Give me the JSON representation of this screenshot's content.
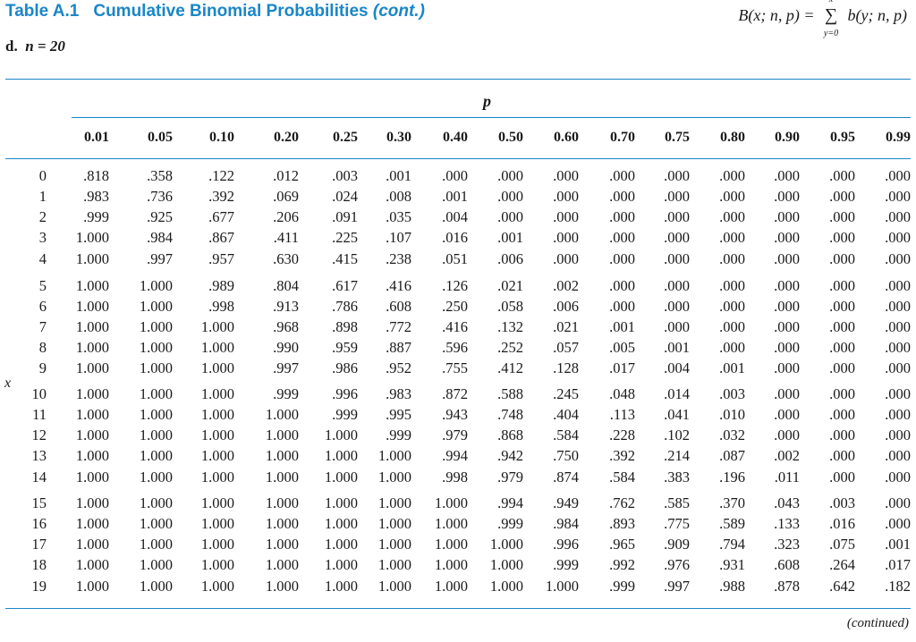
{
  "header": {
    "table_label": "Table A.1",
    "title": "Cumulative Binomial Probabilities",
    "title_suffix": "(cont.)",
    "formula_lhs": "B(x; n, p) =",
    "formula_sum_upper": "x",
    "formula_sum_lower": "y=0",
    "formula_rhs": "b(y; n, p)",
    "subtitle_letter": "d.",
    "subtitle_n": "n = 20"
  },
  "table": {
    "p_label": "p",
    "x_label": "x",
    "columns": [
      "0.01",
      "0.05",
      "0.10",
      "0.20",
      "0.25",
      "0.30",
      "0.40",
      "0.50",
      "0.60",
      "0.70",
      "0.75",
      "0.80",
      "0.90",
      "0.95",
      "0.99"
    ],
    "rows": [
      {
        "x": "0",
        "v": [
          ".818",
          ".358",
          ".122",
          ".012",
          ".003",
          ".001",
          ".000",
          ".000",
          ".000",
          ".000",
          ".000",
          ".000",
          ".000",
          ".000",
          ".000"
        ]
      },
      {
        "x": "1",
        "v": [
          ".983",
          ".736",
          ".392",
          ".069",
          ".024",
          ".008",
          ".001",
          ".000",
          ".000",
          ".000",
          ".000",
          ".000",
          ".000",
          ".000",
          ".000"
        ]
      },
      {
        "x": "2",
        "v": [
          ".999",
          ".925",
          ".677",
          ".206",
          ".091",
          ".035",
          ".004",
          ".000",
          ".000",
          ".000",
          ".000",
          ".000",
          ".000",
          ".000",
          ".000"
        ]
      },
      {
        "x": "3",
        "v": [
          "1.000",
          ".984",
          ".867",
          ".411",
          ".225",
          ".107",
          ".016",
          ".001",
          ".000",
          ".000",
          ".000",
          ".000",
          ".000",
          ".000",
          ".000"
        ]
      },
      {
        "x": "4",
        "v": [
          "1.000",
          ".997",
          ".957",
          ".630",
          ".415",
          ".238",
          ".051",
          ".006",
          ".000",
          ".000",
          ".000",
          ".000",
          ".000",
          ".000",
          ".000"
        ]
      },
      {
        "x": "5",
        "v": [
          "1.000",
          "1.000",
          ".989",
          ".804",
          ".617",
          ".416",
          ".126",
          ".021",
          ".002",
          ".000",
          ".000",
          ".000",
          ".000",
          ".000",
          ".000"
        ]
      },
      {
        "x": "6",
        "v": [
          "1.000",
          "1.000",
          ".998",
          ".913",
          ".786",
          ".608",
          ".250",
          ".058",
          ".006",
          ".000",
          ".000",
          ".000",
          ".000",
          ".000",
          ".000"
        ]
      },
      {
        "x": "7",
        "v": [
          "1.000",
          "1.000",
          "1.000",
          ".968",
          ".898",
          ".772",
          ".416",
          ".132",
          ".021",
          ".001",
          ".000",
          ".000",
          ".000",
          ".000",
          ".000"
        ]
      },
      {
        "x": "8",
        "v": [
          "1.000",
          "1.000",
          "1.000",
          ".990",
          ".959",
          ".887",
          ".596",
          ".252",
          ".057",
          ".005",
          ".001",
          ".000",
          ".000",
          ".000",
          ".000"
        ]
      },
      {
        "x": "9",
        "v": [
          "1.000",
          "1.000",
          "1.000",
          ".997",
          ".986",
          ".952",
          ".755",
          ".412",
          ".128",
          ".017",
          ".004",
          ".001",
          ".000",
          ".000",
          ".000"
        ]
      },
      {
        "x": "10",
        "v": [
          "1.000",
          "1.000",
          "1.000",
          ".999",
          ".996",
          ".983",
          ".872",
          ".588",
          ".245",
          ".048",
          ".014",
          ".003",
          ".000",
          ".000",
          ".000"
        ]
      },
      {
        "x": "11",
        "v": [
          "1.000",
          "1.000",
          "1.000",
          "1.000",
          ".999",
          ".995",
          ".943",
          ".748",
          ".404",
          ".113",
          ".041",
          ".010",
          ".000",
          ".000",
          ".000"
        ]
      },
      {
        "x": "12",
        "v": [
          "1.000",
          "1.000",
          "1.000",
          "1.000",
          "1.000",
          ".999",
          ".979",
          ".868",
          ".584",
          ".228",
          ".102",
          ".032",
          ".000",
          ".000",
          ".000"
        ]
      },
      {
        "x": "13",
        "v": [
          "1.000",
          "1.000",
          "1.000",
          "1.000",
          "1.000",
          "1.000",
          ".994",
          ".942",
          ".750",
          ".392",
          ".214",
          ".087",
          ".002",
          ".000",
          ".000"
        ]
      },
      {
        "x": "14",
        "v": [
          "1.000",
          "1.000",
          "1.000",
          "1.000",
          "1.000",
          "1.000",
          ".998",
          ".979",
          ".874",
          ".584",
          ".383",
          ".196",
          ".011",
          ".000",
          ".000"
        ]
      },
      {
        "x": "15",
        "v": [
          "1.000",
          "1.000",
          "1.000",
          "1.000",
          "1.000",
          "1.000",
          "1.000",
          ".994",
          ".949",
          ".762",
          ".585",
          ".370",
          ".043",
          ".003",
          ".000"
        ]
      },
      {
        "x": "16",
        "v": [
          "1.000",
          "1.000",
          "1.000",
          "1.000",
          "1.000",
          "1.000",
          "1.000",
          ".999",
          ".984",
          ".893",
          ".775",
          ".589",
          ".133",
          ".016",
          ".000"
        ]
      },
      {
        "x": "17",
        "v": [
          "1.000",
          "1.000",
          "1.000",
          "1.000",
          "1.000",
          "1.000",
          "1.000",
          "1.000",
          ".996",
          ".965",
          ".909",
          ".794",
          ".323",
          ".075",
          ".001"
        ]
      },
      {
        "x": "18",
        "v": [
          "1.000",
          "1.000",
          "1.000",
          "1.000",
          "1.000",
          "1.000",
          "1.000",
          "1.000",
          ".999",
          ".992",
          ".976",
          ".931",
          ".608",
          ".264",
          ".017"
        ]
      },
      {
        "x": "19",
        "v": [
          "1.000",
          "1.000",
          "1.000",
          "1.000",
          "1.000",
          "1.000",
          "1.000",
          "1.000",
          "1.000",
          ".999",
          ".997",
          ".988",
          ".878",
          ".642",
          ".182"
        ]
      }
    ]
  },
  "footer": {
    "continued": "(continued)"
  },
  "colors": {
    "accent": "#1a86c8",
    "text": "#1a1a1a"
  }
}
